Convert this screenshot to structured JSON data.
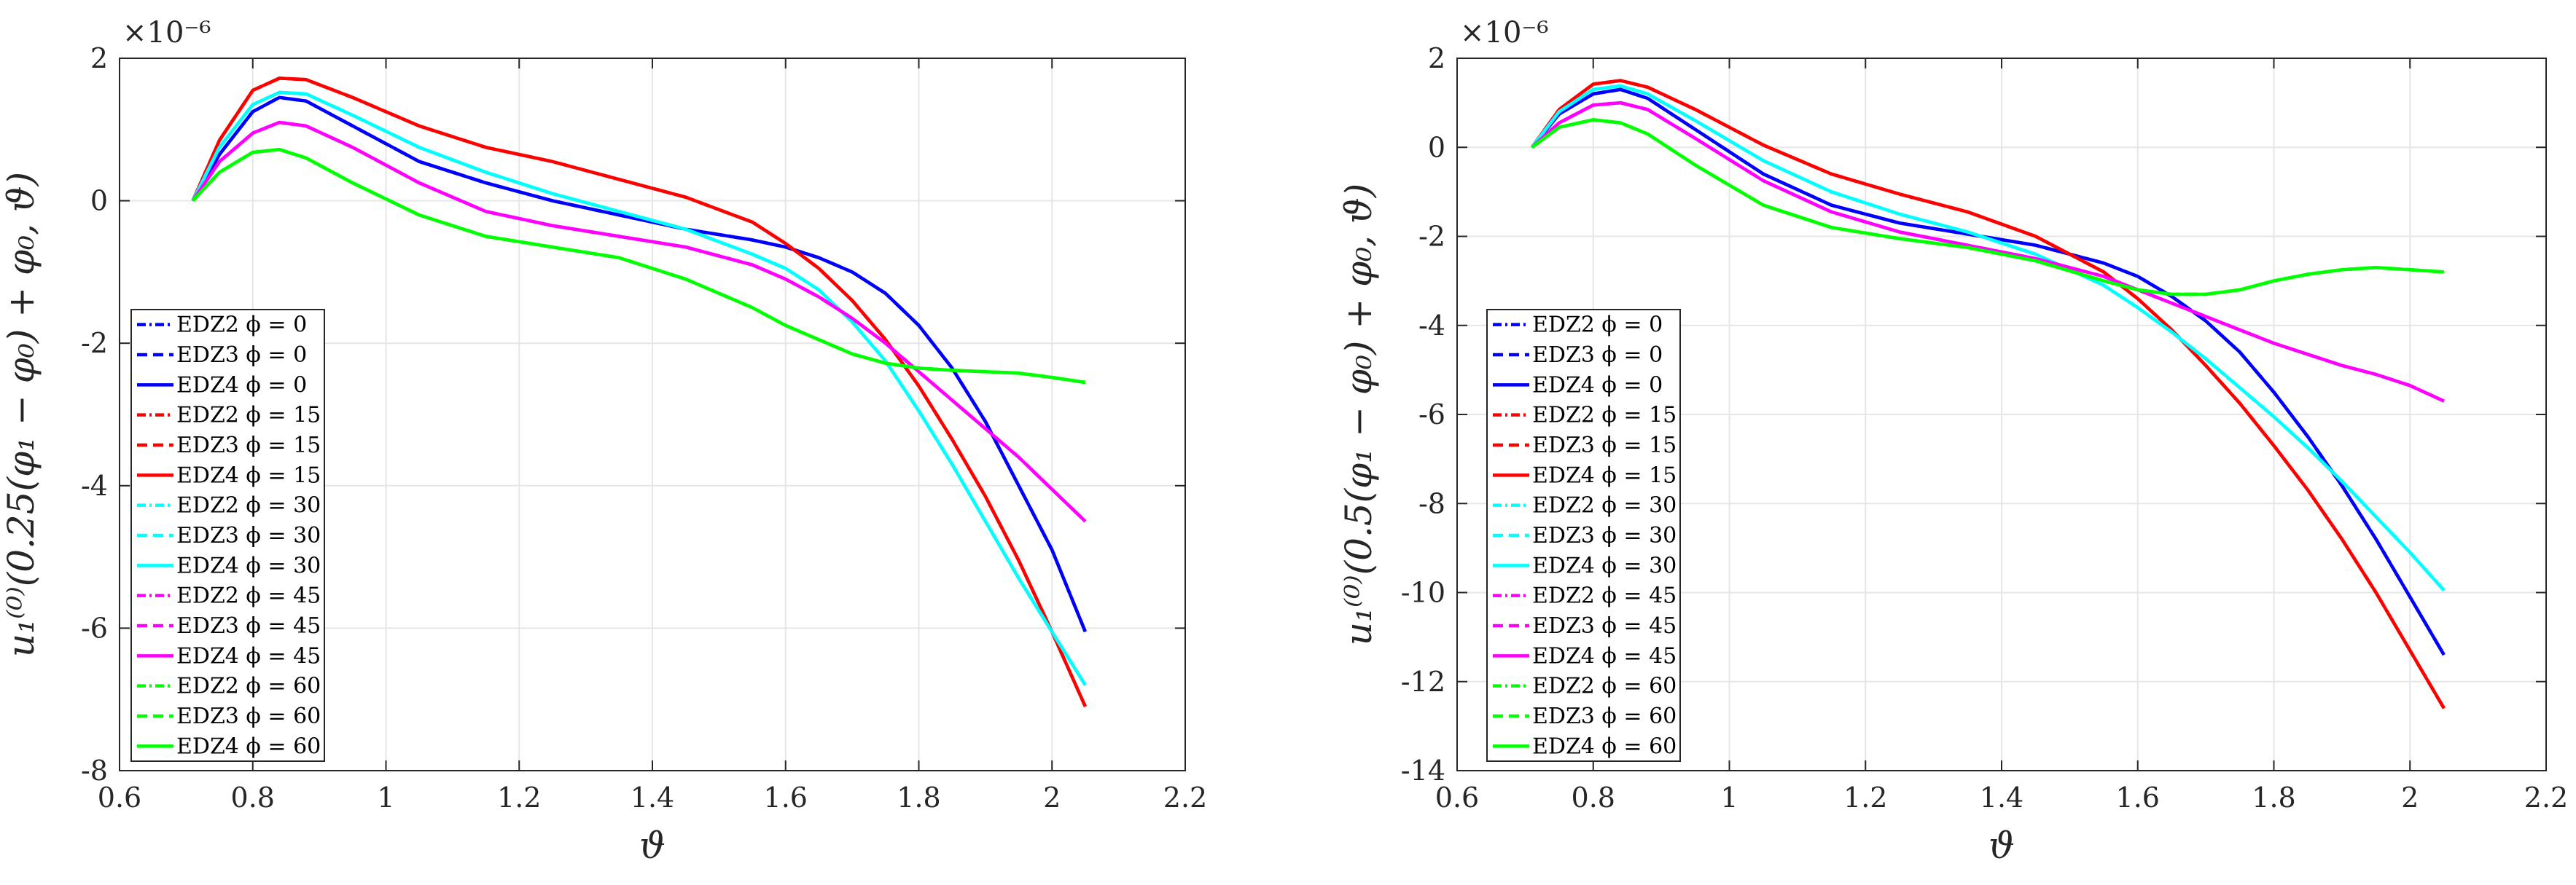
{
  "chart_data": [
    {
      "type": "line",
      "xlabel": "ϑ",
      "ylabel": "u₁⁽⁰⁾(0.25(φ₁ − φ₀) + φ₀, ϑ)",
      "y_exponent_label": "×10⁻⁶",
      "xlim": [
        0.6,
        2.2
      ],
      "ylim": [
        -8,
        2
      ],
      "xticks": [
        "0.6",
        "0.8",
        "1",
        "1.2",
        "1.4",
        "1.6",
        "1.8",
        "2",
        "2.2"
      ],
      "xtick_values": [
        0.6,
        0.8,
        1.0,
        1.2,
        1.4,
        1.6,
        1.8,
        2.0,
        2.2
      ],
      "yticks": [
        "2",
        "0",
        "-2",
        "-4",
        "-6",
        "-8"
      ],
      "ytick_values": [
        2,
        0,
        -2,
        -4,
        -6,
        -8
      ],
      "grid": true,
      "legend_position": "lower-left",
      "legend": [
        {
          "label": "EDZ2 ϕ = 0",
          "color": "#0000ff",
          "dash": "dashdot"
        },
        {
          "label": "EDZ3 ϕ = 0",
          "color": "#0000ff",
          "dash": "dashed"
        },
        {
          "label": "EDZ4 ϕ = 0",
          "color": "#0000ff",
          "dash": "solid"
        },
        {
          "label": "EDZ2 ϕ = 15",
          "color": "#ff0000",
          "dash": "dashdot"
        },
        {
          "label": "EDZ3 ϕ = 15",
          "color": "#ff0000",
          "dash": "dashed"
        },
        {
          "label": "EDZ4 ϕ = 15",
          "color": "#ff0000",
          "dash": "solid"
        },
        {
          "label": "EDZ2 ϕ = 30",
          "color": "#00ffff",
          "dash": "dashdot"
        },
        {
          "label": "EDZ3 ϕ = 30",
          "color": "#00ffff",
          "dash": "dashed"
        },
        {
          "label": "EDZ4 ϕ = 30",
          "color": "#00ffff",
          "dash": "solid"
        },
        {
          "label": "EDZ2 ϕ = 45",
          "color": "#ff00ff",
          "dash": "dashdot"
        },
        {
          "label": "EDZ3 ϕ = 45",
          "color": "#ff00ff",
          "dash": "dashed"
        },
        {
          "label": "EDZ4 ϕ = 45",
          "color": "#ff00ff",
          "dash": "solid"
        },
        {
          "label": "EDZ2 ϕ = 60",
          "color": "#00ff00",
          "dash": "dashdot"
        },
        {
          "label": "EDZ3 ϕ = 60",
          "color": "#00ff00",
          "dash": "dashed"
        },
        {
          "label": "EDZ4 ϕ = 60",
          "color": "#00ff00",
          "dash": "solid"
        }
      ],
      "series": [
        {
          "name": "ϕ = 0",
          "color": "#0000ff",
          "x": [
            0.71,
            0.75,
            0.8,
            0.84,
            0.88,
            0.95,
            1.05,
            1.15,
            1.25,
            1.35,
            1.45,
            1.55,
            1.6,
            1.65,
            1.7,
            1.75,
            1.8,
            1.85,
            1.9,
            1.95,
            2.0,
            2.05
          ],
          "y": [
            0.0,
            0.65,
            1.25,
            1.45,
            1.4,
            1.05,
            0.55,
            0.25,
            0.0,
            -0.2,
            -0.4,
            -0.55,
            -0.65,
            -0.8,
            -1.0,
            -1.3,
            -1.75,
            -2.35,
            -3.1,
            -4.0,
            -4.9,
            -6.05
          ]
        },
        {
          "name": "ϕ = 15",
          "color": "#ff0000",
          "x": [
            0.71,
            0.75,
            0.8,
            0.84,
            0.88,
            0.95,
            1.05,
            1.15,
            1.25,
            1.35,
            1.45,
            1.55,
            1.6,
            1.65,
            1.7,
            1.75,
            1.8,
            1.85,
            1.9,
            1.95,
            2.0,
            2.05
          ],
          "y": [
            0.0,
            0.85,
            1.55,
            1.72,
            1.7,
            1.45,
            1.05,
            0.75,
            0.55,
            0.3,
            0.05,
            -0.3,
            -0.6,
            -0.95,
            -1.4,
            -1.95,
            -2.6,
            -3.35,
            -4.15,
            -5.05,
            -6.05,
            -7.1
          ]
        },
        {
          "name": "ϕ = 30",
          "color": "#00ffff",
          "x": [
            0.71,
            0.75,
            0.8,
            0.84,
            0.88,
            0.95,
            1.05,
            1.15,
            1.25,
            1.35,
            1.45,
            1.55,
            1.6,
            1.65,
            1.7,
            1.75,
            1.8,
            1.85,
            1.9,
            1.95,
            2.0,
            2.05
          ],
          "y": [
            0.0,
            0.75,
            1.35,
            1.52,
            1.5,
            1.2,
            0.75,
            0.4,
            0.1,
            -0.15,
            -0.4,
            -0.75,
            -0.95,
            -1.25,
            -1.7,
            -2.25,
            -2.95,
            -3.7,
            -4.5,
            -5.3,
            -6.05,
            -6.8
          ]
        },
        {
          "name": "ϕ = 45",
          "color": "#ff00ff",
          "x": [
            0.71,
            0.75,
            0.8,
            0.84,
            0.88,
            0.95,
            1.05,
            1.15,
            1.25,
            1.35,
            1.45,
            1.55,
            1.6,
            1.65,
            1.7,
            1.75,
            1.8,
            1.85,
            1.9,
            1.95,
            2.0,
            2.05
          ],
          "y": [
            0.0,
            0.55,
            0.95,
            1.1,
            1.05,
            0.75,
            0.25,
            -0.15,
            -0.35,
            -0.5,
            -0.65,
            -0.9,
            -1.1,
            -1.35,
            -1.65,
            -2.0,
            -2.4,
            -2.8,
            -3.2,
            -3.6,
            -4.05,
            -4.5
          ]
        },
        {
          "name": "ϕ = 60",
          "color": "#00ff00",
          "x": [
            0.71,
            0.75,
            0.8,
            0.84,
            0.88,
            0.95,
            1.05,
            1.15,
            1.25,
            1.35,
            1.45,
            1.55,
            1.6,
            1.65,
            1.7,
            1.75,
            1.8,
            1.85,
            1.9,
            1.95,
            2.0,
            2.05
          ],
          "y": [
            0.0,
            0.4,
            0.68,
            0.72,
            0.6,
            0.25,
            -0.2,
            -0.5,
            -0.65,
            -0.8,
            -1.1,
            -1.5,
            -1.75,
            -1.95,
            -2.15,
            -2.28,
            -2.35,
            -2.38,
            -2.4,
            -2.42,
            -2.48,
            -2.55
          ]
        }
      ]
    },
    {
      "type": "line",
      "xlabel": "ϑ",
      "ylabel": "u₁⁽⁰⁾(0.5(φ₁ − φ₀) + φ₀, ϑ)",
      "y_exponent_label": "×10⁻⁶",
      "xlim": [
        0.6,
        2.2
      ],
      "ylim": [
        -14,
        2
      ],
      "xticks": [
        "0.6",
        "0.8",
        "1",
        "1.2",
        "1.4",
        "1.6",
        "1.8",
        "2",
        "2.2"
      ],
      "xtick_values": [
        0.6,
        0.8,
        1.0,
        1.2,
        1.4,
        1.6,
        1.8,
        2.0,
        2.2
      ],
      "yticks": [
        "2",
        "0",
        "-2",
        "-4",
        "-6",
        "-8",
        "-10",
        "-12",
        "-14"
      ],
      "ytick_values": [
        2,
        0,
        -2,
        -4,
        -6,
        -8,
        -10,
        -12,
        -14
      ],
      "grid": true,
      "legend_position": "lower-left",
      "legend": [
        {
          "label": "EDZ2 ϕ = 0",
          "color": "#0000ff",
          "dash": "dashdot"
        },
        {
          "label": "EDZ3 ϕ = 0",
          "color": "#0000ff",
          "dash": "dashed"
        },
        {
          "label": "EDZ4 ϕ = 0",
          "color": "#0000ff",
          "dash": "solid"
        },
        {
          "label": "EDZ2 ϕ = 15",
          "color": "#ff0000",
          "dash": "dashdot"
        },
        {
          "label": "EDZ3 ϕ = 15",
          "color": "#ff0000",
          "dash": "dashed"
        },
        {
          "label": "EDZ4 ϕ = 15",
          "color": "#ff0000",
          "dash": "solid"
        },
        {
          "label": "EDZ2 ϕ = 30",
          "color": "#00ffff",
          "dash": "dashdot"
        },
        {
          "label": "EDZ3 ϕ = 30",
          "color": "#00ffff",
          "dash": "dashed"
        },
        {
          "label": "EDZ4 ϕ = 30",
          "color": "#00ffff",
          "dash": "solid"
        },
        {
          "label": "EDZ2 ϕ = 45",
          "color": "#ff00ff",
          "dash": "dashdot"
        },
        {
          "label": "EDZ3 ϕ = 45",
          "color": "#ff00ff",
          "dash": "dashed"
        },
        {
          "label": "EDZ4 ϕ = 45",
          "color": "#ff00ff",
          "dash": "solid"
        },
        {
          "label": "EDZ2 ϕ = 60",
          "color": "#00ff00",
          "dash": "dashdot"
        },
        {
          "label": "EDZ3 ϕ = 60",
          "color": "#00ff00",
          "dash": "dashed"
        },
        {
          "label": "EDZ4 ϕ = 60",
          "color": "#00ff00",
          "dash": "solid"
        }
      ],
      "series": [
        {
          "name": "ϕ = 0",
          "color": "#0000ff",
          "x": [
            0.71,
            0.75,
            0.8,
            0.84,
            0.88,
            0.95,
            1.05,
            1.15,
            1.25,
            1.35,
            1.45,
            1.55,
            1.6,
            1.65,
            1.7,
            1.75,
            1.8,
            1.85,
            1.9,
            1.95,
            2.0,
            2.05
          ],
          "y": [
            0.0,
            0.75,
            1.2,
            1.3,
            1.1,
            0.4,
            -0.6,
            -1.3,
            -1.7,
            -1.95,
            -2.2,
            -2.6,
            -2.9,
            -3.35,
            -3.9,
            -4.6,
            -5.5,
            -6.5,
            -7.6,
            -8.8,
            -10.1,
            -11.4
          ]
        },
        {
          "name": "ϕ = 15",
          "color": "#ff0000",
          "x": [
            0.71,
            0.75,
            0.8,
            0.84,
            0.88,
            0.95,
            1.05,
            1.15,
            1.25,
            1.35,
            1.45,
            1.55,
            1.6,
            1.65,
            1.7,
            1.75,
            1.8,
            1.85,
            1.9,
            1.95,
            2.0,
            2.05
          ],
          "y": [
            0.0,
            0.85,
            1.42,
            1.5,
            1.35,
            0.85,
            0.05,
            -0.6,
            -1.05,
            -1.45,
            -2.0,
            -2.8,
            -3.4,
            -4.1,
            -4.9,
            -5.75,
            -6.7,
            -7.7,
            -8.8,
            -10.0,
            -11.3,
            -12.6
          ]
        },
        {
          "name": "ϕ = 30",
          "color": "#00ffff",
          "x": [
            0.71,
            0.75,
            0.8,
            0.84,
            0.88,
            0.95,
            1.05,
            1.15,
            1.25,
            1.35,
            1.45,
            1.55,
            1.6,
            1.65,
            1.7,
            1.75,
            1.8,
            1.85,
            1.9,
            1.95,
            2.0,
            2.05
          ],
          "y": [
            0.0,
            0.8,
            1.3,
            1.38,
            1.2,
            0.6,
            -0.3,
            -1.0,
            -1.5,
            -1.9,
            -2.4,
            -3.1,
            -3.6,
            -4.15,
            -4.75,
            -5.4,
            -6.05,
            -6.75,
            -7.5,
            -8.3,
            -9.1,
            -9.95
          ]
        },
        {
          "name": "ϕ = 45",
          "color": "#ff00ff",
          "x": [
            0.71,
            0.75,
            0.8,
            0.84,
            0.88,
            0.95,
            1.05,
            1.15,
            1.25,
            1.35,
            1.45,
            1.55,
            1.6,
            1.65,
            1.7,
            1.75,
            1.8,
            1.85,
            1.9,
            1.95,
            2.0,
            2.05
          ],
          "y": [
            0.0,
            0.55,
            0.95,
            1.0,
            0.85,
            0.2,
            -0.75,
            -1.45,
            -1.9,
            -2.2,
            -2.5,
            -2.9,
            -3.2,
            -3.5,
            -3.8,
            -4.1,
            -4.4,
            -4.65,
            -4.9,
            -5.1,
            -5.35,
            -5.7
          ]
        },
        {
          "name": "ϕ = 60",
          "color": "#00ff00",
          "x": [
            0.71,
            0.75,
            0.8,
            0.84,
            0.88,
            0.95,
            1.05,
            1.15,
            1.25,
            1.35,
            1.45,
            1.55,
            1.6,
            1.65,
            1.7,
            1.75,
            1.8,
            1.85,
            1.9,
            1.95,
            2.0,
            2.05
          ],
          "y": [
            0.0,
            0.45,
            0.62,
            0.55,
            0.3,
            -0.4,
            -1.3,
            -1.8,
            -2.05,
            -2.25,
            -2.55,
            -3.0,
            -3.2,
            -3.3,
            -3.3,
            -3.2,
            -3.0,
            -2.85,
            -2.75,
            -2.7,
            -2.75,
            -2.8
          ]
        }
      ]
    }
  ]
}
